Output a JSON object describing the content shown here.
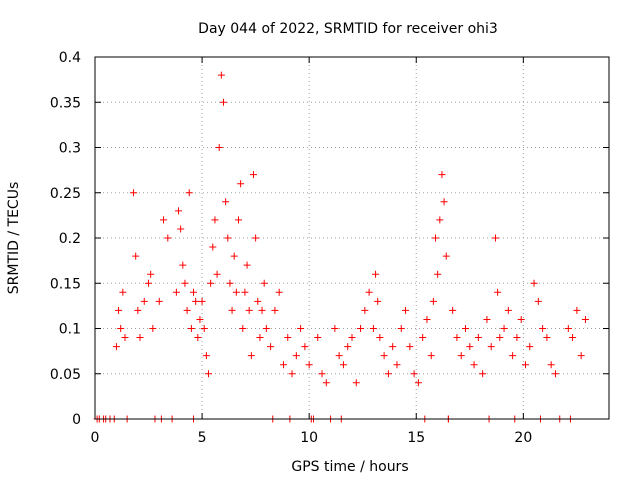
{
  "chart_data": {
    "type": "scatter",
    "title": "Day 044 of 2022, SRMTID for receiver ohi3",
    "xlabel": "GPS time / hours",
    "ylabel": "SRMTID / TECUs",
    "xlim": [
      0,
      24
    ],
    "ylim": [
      0,
      0.4
    ],
    "x_ticks": [
      0,
      5,
      10,
      15,
      20
    ],
    "x_tick_labels": [
      "0",
      "5",
      "10",
      "15",
      "20"
    ],
    "y_ticks": [
      0,
      0.05,
      0.1,
      0.15,
      0.2,
      0.25,
      0.3,
      0.35,
      0.4
    ],
    "y_tick_labels": [
      "0",
      "0.05",
      "0.1",
      "0.15",
      "0.2",
      "0.25",
      "0.3",
      "0.35",
      "0.4"
    ],
    "grid": true,
    "marker": "+",
    "series_color": "#ff0000",
    "series": [
      {
        "name": "SRMTID",
        "x": [
          0.1,
          0.2,
          0.4,
          0.7,
          0.9,
          1.0,
          1.1,
          1.2,
          1.3,
          1.4,
          1.5,
          1.8,
          1.9,
          2.0,
          2.1,
          2.3,
          2.5,
          2.6,
          2.7,
          2.8,
          3.0,
          3.2,
          3.4,
          3.6,
          3.8,
          3.9,
          4.0,
          4.1,
          4.2,
          4.3,
          4.4,
          4.5,
          4.6,
          4.7,
          4.8,
          4.9,
          5.0,
          5.1,
          5.2,
          5.3,
          5.4,
          5.5,
          5.6,
          5.7,
          5.8,
          5.9,
          6.0,
          6.1,
          6.2,
          6.3,
          6.4,
          6.5,
          6.6,
          6.7,
          6.8,
          6.9,
          7.0,
          7.1,
          7.2,
          7.3,
          7.4,
          7.5,
          7.6,
          7.7,
          7.8,
          7.9,
          8.0,
          8.2,
          8.4,
          8.6,
          8.8,
          9.0,
          9.2,
          9.4,
          9.6,
          9.8,
          10.0,
          10.2,
          10.4,
          10.6,
          10.8,
          11.0,
          11.2,
          11.4,
          11.6,
          11.8,
          12.0,
          12.2,
          12.4,
          12.6,
          12.8,
          13.0,
          13.1,
          13.2,
          13.3,
          13.5,
          13.7,
          13.9,
          14.1,
          14.3,
          14.5,
          14.7,
          14.9,
          15.1,
          15.3,
          15.5,
          15.7,
          15.8,
          15.9,
          16.0,
          16.1,
          16.2,
          16.3,
          16.4,
          16.5,
          16.7,
          16.9,
          17.1,
          17.3,
          17.5,
          17.7,
          17.9,
          18.1,
          18.3,
          18.5,
          18.7,
          18.8,
          18.9,
          19.1,
          19.3,
          19.5,
          19.7,
          19.9,
          20.1,
          20.3,
          20.5,
          20.7,
          20.9,
          21.1,
          21.3,
          21.5,
          21.7,
          22.1,
          22.3,
          22.5,
          22.7,
          22.9,
          0.5,
          3.1,
          4.6,
          8.3,
          9.1,
          10.1,
          11.5,
          15.4,
          16.5,
          18.4,
          19.6,
          20.8,
          22.2
        ],
        "y": [
          0.0,
          0.0,
          0.0,
          0.0,
          0.0,
          0.08,
          0.12,
          0.1,
          0.14,
          0.09,
          0.0,
          0.25,
          0.18,
          0.12,
          0.09,
          0.13,
          0.15,
          0.16,
          0.1,
          0.0,
          0.13,
          0.22,
          0.2,
          0.0,
          0.14,
          0.23,
          0.21,
          0.17,
          0.15,
          0.12,
          0.25,
          0.1,
          0.14,
          0.13,
          0.09,
          0.11,
          0.13,
          0.1,
          0.07,
          0.05,
          0.15,
          0.19,
          0.22,
          0.16,
          0.3,
          0.38,
          0.35,
          0.24,
          0.2,
          0.15,
          0.12,
          0.18,
          0.14,
          0.22,
          0.26,
          0.1,
          0.14,
          0.17,
          0.12,
          0.07,
          0.27,
          0.2,
          0.13,
          0.09,
          0.12,
          0.15,
          0.1,
          0.08,
          0.12,
          0.14,
          0.06,
          0.09,
          0.05,
          0.07,
          0.1,
          0.08,
          0.06,
          0.0,
          0.09,
          0.05,
          0.04,
          0.0,
          0.1,
          0.07,
          0.06,
          0.08,
          0.09,
          0.04,
          0.1,
          0.12,
          0.14,
          0.1,
          0.16,
          0.13,
          0.09,
          0.07,
          0.05,
          0.08,
          0.06,
          0.1,
          0.12,
          0.08,
          0.05,
          0.04,
          0.09,
          0.11,
          0.07,
          0.13,
          0.2,
          0.16,
          0.22,
          0.27,
          0.24,
          0.18,
          0.0,
          0.12,
          0.09,
          0.07,
          0.1,
          0.08,
          0.06,
          0.09,
          0.05,
          0.11,
          0.08,
          0.2,
          0.14,
          0.09,
          0.1,
          0.12,
          0.07,
          0.09,
          0.11,
          0.06,
          0.08,
          0.15,
          0.13,
          0.1,
          0.09,
          0.06,
          0.05,
          0.0,
          0.1,
          0.09,
          0.12,
          0.07,
          0.11,
          0.0,
          0.0,
          0.0,
          0.0,
          0.0,
          0.0,
          0.0,
          0.0,
          0.0,
          0.0,
          0.0,
          0.0,
          0.0
        ]
      }
    ]
  }
}
